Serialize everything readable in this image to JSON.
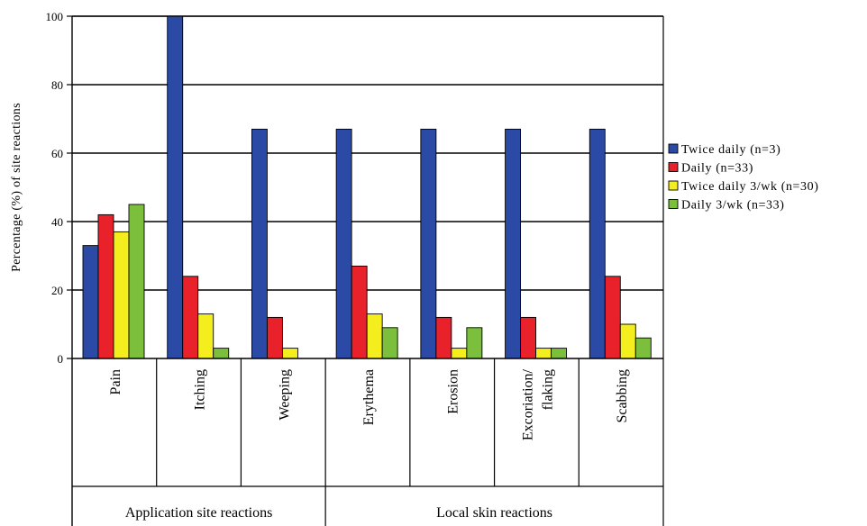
{
  "chart_data": {
    "type": "bar",
    "ylabel": "Percentage (%) of site reactions",
    "ylim": [
      0,
      100
    ],
    "yticks": [
      0,
      20,
      40,
      60,
      80,
      100
    ],
    "grid": true,
    "legend_position": "right",
    "categories": [
      "Pain",
      "Itching",
      "Weeping",
      "Erythema",
      "Erosion",
      "Excoriation/ flaking",
      "Scabbing"
    ],
    "category_lines": [
      [
        "Pain"
      ],
      [
        "Itching"
      ],
      [
        "Weeping"
      ],
      [
        "Erythema"
      ],
      [
        "Erosion"
      ],
      [
        "Excoriation/",
        "flaking"
      ],
      [
        "Scabbing"
      ]
    ],
    "groups": [
      {
        "label": "Application site reactions",
        "categories": [
          "Pain",
          "Itching",
          "Weeping"
        ]
      },
      {
        "label": "Local skin reactions",
        "categories": [
          "Erythema",
          "Erosion",
          "Excoriation/ flaking",
          "Scabbing"
        ]
      }
    ],
    "series": [
      {
        "name": "Twice daily (n=3)",
        "color": "#2a4aa6",
        "values": [
          33,
          100,
          67,
          67,
          67,
          67,
          67
        ]
      },
      {
        "name": "Daily (n=33)",
        "color": "#e8212b",
        "values": [
          42,
          24,
          12,
          27,
          12,
          12,
          24
        ]
      },
      {
        "name": "Twice daily 3/wk (n=30)",
        "color": "#f4ee1f",
        "values": [
          37,
          13,
          3,
          13,
          3,
          3,
          10
        ]
      },
      {
        "name": "Daily 3/wk (n=33)",
        "color": "#7cbf3d",
        "values": [
          45,
          3,
          0,
          9,
          9,
          3,
          6
        ]
      }
    ]
  }
}
